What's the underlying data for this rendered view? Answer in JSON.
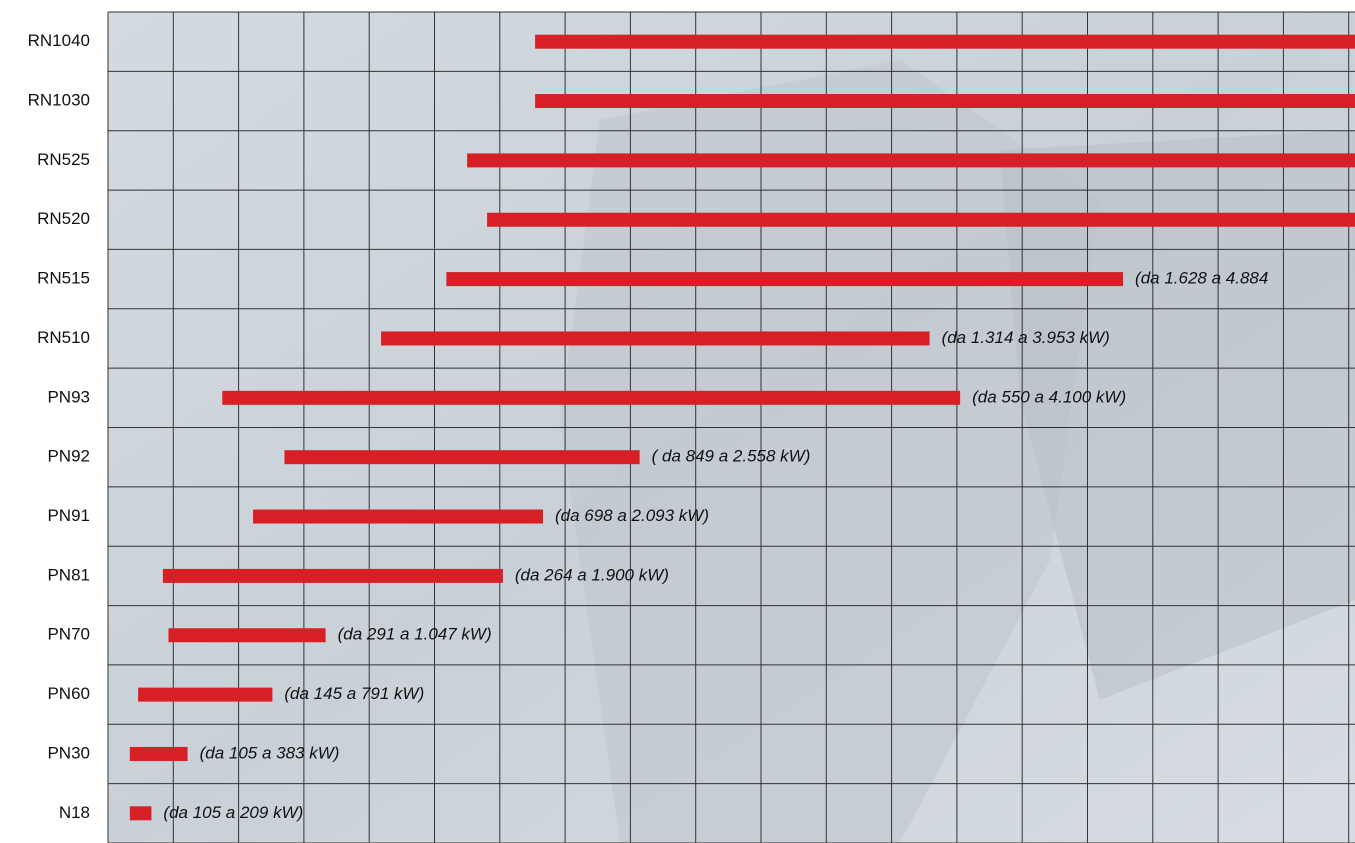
{
  "chart_data": {
    "type": "range-bar",
    "categories": [
      "RN1040",
      "RN1030",
      "RN525",
      "RN520",
      "RN515",
      "RN510",
      "PN93",
      "PN92",
      "PN91",
      "PN81",
      "PN70",
      "PN60",
      "PN30",
      "N18"
    ],
    "low": [
      2055,
      2055,
      1728,
      1824,
      1628,
      1314,
      550,
      849,
      698,
      264,
      291,
      145,
      105,
      105
    ],
    "high": [
      7000,
      7000,
      7000,
      7000,
      4884,
      3953,
      4100,
      2558,
      2093,
      1900,
      1047,
      791,
      383,
      209
    ],
    "value_labels": [
      null,
      null,
      null,
      null,
      "(da 1.628 a  4.884",
      "(da 1.314  a  3.953 kW)",
      "(da 550  a  4.100 kW)",
      "( da 849  a  2.558 kW)",
      "(da 698  a  2.093 kW)",
      "(da 264  a  1.900 kW)",
      "(da 291  a  1.047 kW)",
      "(da 145  a  791 kW)",
      "(da 105  a  383 kW)",
      "(da 105  a  209 kW)"
    ],
    "color": "#d71f26",
    "xlim": [
      0,
      6000
    ],
    "grid": true
  }
}
